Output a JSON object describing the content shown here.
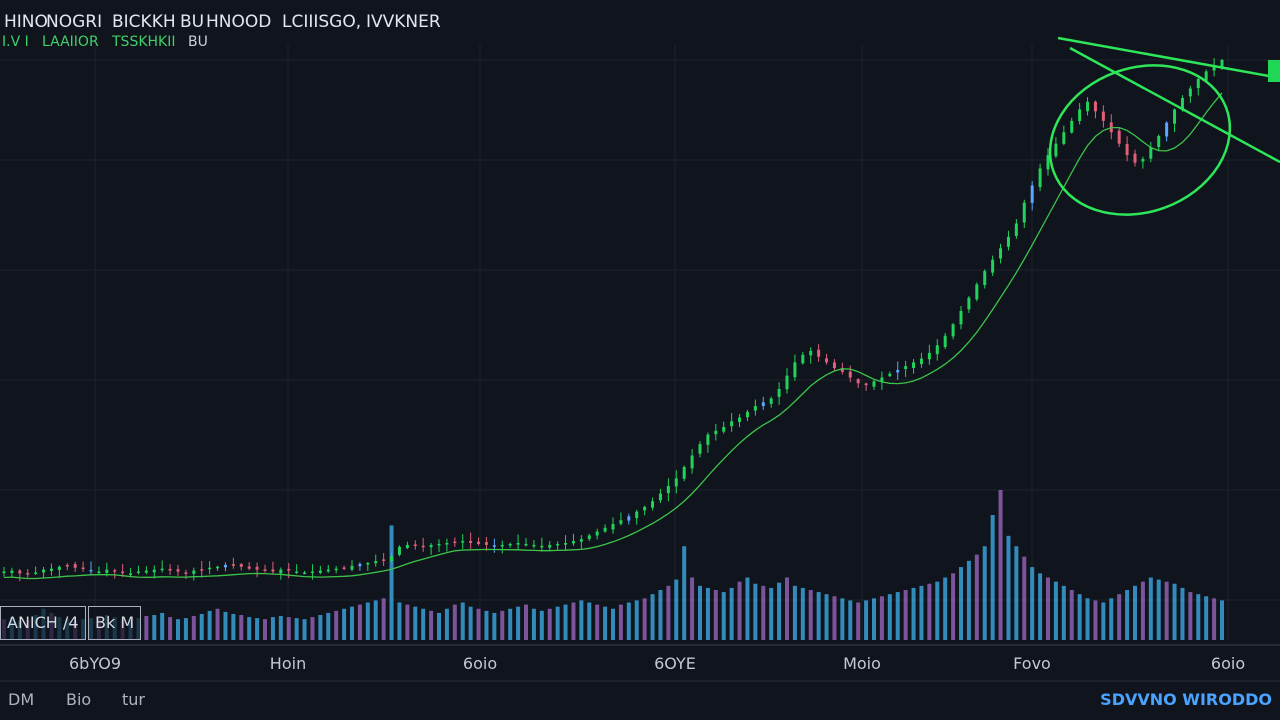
{
  "header": {
    "title_parts": [
      "HINO",
      "NOGRI",
      "BICKKH",
      "BU",
      "HNOOD",
      "LCIIISGO,",
      "IVVKNER"
    ],
    "subtitle_parts": [
      "I.V I",
      "LAAIIOR",
      "TSSKHKII",
      "BU"
    ]
  },
  "controls": {
    "box1_label": "ANICH /4",
    "box2_label": "Bk M"
  },
  "x_axis": {
    "labels": [
      "6bYO9",
      "Hoin",
      "6oio",
      "6OYE",
      "Moio",
      "Fovo",
      "6oio"
    ]
  },
  "bottom": {
    "labels": [
      "DM",
      "Bio",
      "tur"
    ],
    "corner_label": "SDVVNO WIRODDO"
  },
  "colors": {
    "background": "#10141c",
    "up": "#22d35a",
    "down": "#e0607a",
    "neutral": "#5aa7ff",
    "ma": "#3cc44a",
    "annotation": "#2ee65a",
    "volume_blue": "#3aa0d8",
    "volume_purple": "#8f5fb0"
  },
  "chart_data": {
    "type": "candlestick",
    "closes": [
      62,
      63,
      60,
      59,
      61,
      64,
      65,
      67,
      68,
      66,
      65,
      63,
      62,
      64,
      63,
      61,
      60,
      62,
      63,
      64,
      65,
      63,
      62,
      61,
      63,
      64,
      66,
      67,
      69,
      68,
      67,
      65,
      64,
      63,
      62,
      64,
      63,
      62,
      61,
      62,
      63,
      64,
      65,
      66,
      68,
      70,
      71,
      73,
      74,
      78,
      88,
      90,
      89,
      88,
      90,
      91,
      92,
      93,
      94,
      92,
      91,
      90,
      89,
      90,
      91,
      92,
      91,
      90,
      89,
      90,
      91,
      92,
      94,
      96,
      100,
      104,
      108,
      112,
      116,
      120,
      125,
      130,
      136,
      144,
      152,
      160,
      172,
      184,
      196,
      206,
      210,
      214,
      220,
      224,
      230,
      236,
      240,
      244,
      254,
      268,
      282,
      290,
      294,
      288,
      282,
      276,
      272,
      266,
      260,
      258,
      262,
      266,
      270,
      274,
      278,
      282,
      286,
      292,
      300,
      310,
      322,
      336,
      350,
      364,
      378,
      390,
      402,
      414,
      428,
      450,
      468,
      486,
      500,
      512,
      524,
      536,
      548,
      556,
      546,
      536,
      524,
      512,
      500,
      492,
      496,
      508,
      520,
      534,
      548,
      560,
      570,
      580,
      588,
      594,
      600
    ],
    "volumes": [
      20,
      22,
      18,
      19,
      24,
      30,
      26,
      22,
      20,
      18,
      20,
      21,
      22,
      24,
      22,
      20,
      19,
      21,
      23,
      24,
      26,
      22,
      20,
      21,
      23,
      25,
      28,
      30,
      27,
      25,
      24,
      22,
      21,
      20,
      22,
      23,
      22,
      21,
      20,
      22,
      24,
      26,
      28,
      30,
      32,
      34,
      36,
      38,
      40,
      110,
      36,
      34,
      32,
      30,
      28,
      26,
      30,
      34,
      36,
      32,
      30,
      28,
      26,
      28,
      30,
      32,
      34,
      30,
      28,
      30,
      32,
      34,
      36,
      38,
      36,
      34,
      32,
      30,
      34,
      36,
      38,
      40,
      44,
      48,
      52,
      58,
      90,
      60,
      52,
      50,
      48,
      46,
      50,
      56,
      60,
      54,
      52,
      50,
      55,
      60,
      52,
      50,
      48,
      46,
      44,
      42,
      40,
      38,
      36,
      38,
      40,
      42,
      44,
      46,
      48,
      50,
      52,
      54,
      56,
      60,
      64,
      70,
      76,
      82,
      90,
      120,
      144,
      100,
      90,
      80,
      70,
      64,
      60,
      56,
      52,
      48,
      44,
      40,
      38,
      36,
      40,
      44,
      48,
      52,
      56,
      60,
      58,
      56,
      54,
      50,
      46,
      44,
      42,
      40,
      38
    ]
  }
}
